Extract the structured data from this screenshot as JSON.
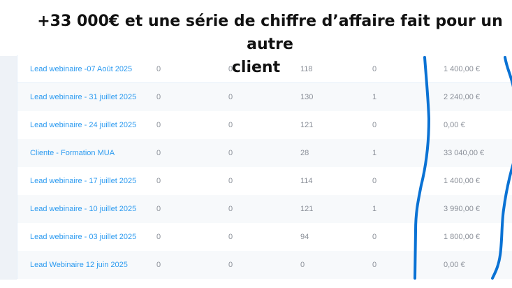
{
  "caption": {
    "line1": "+33 000€ et une série de chiffre d’affaire fait pour un autre",
    "line2": "client"
  },
  "table": {
    "rows": [
      {
        "name": "Lead webinaire -07 Août 2025",
        "c1": "0",
        "c2": "0",
        "c3": "118",
        "c4": "0",
        "revenue": "1 400,00 €"
      },
      {
        "name": "Lead webinaire - 31 juillet 2025",
        "c1": "0",
        "c2": "0",
        "c3": "130",
        "c4": "1",
        "revenue": "2 240,00 €"
      },
      {
        "name": "Lead webinaire - 24 juillet 2025",
        "c1": "0",
        "c2": "0",
        "c3": "121",
        "c4": "0",
        "revenue": "0,00 €"
      },
      {
        "name": "Cliente - Formation MUA",
        "c1": "0",
        "c2": "0",
        "c3": "28",
        "c4": "1",
        "revenue": "33 040,00 €"
      },
      {
        "name": "Lead webinaire - 17 juillet 2025",
        "c1": "0",
        "c2": "0",
        "c3": "114",
        "c4": "0",
        "revenue": "1 400,00 €"
      },
      {
        "name": "Lead webinaire - 10 juillet 2025",
        "c1": "0",
        "c2": "0",
        "c3": "121",
        "c4": "1",
        "revenue": "3 990,00 €"
      },
      {
        "name": "Lead webinaire - 03 juillet 2025",
        "c1": "0",
        "c2": "0",
        "c3": "94",
        "c4": "0",
        "revenue": "1 800,00 €"
      },
      {
        "name": "Lead Webinaire 12 juin 2025",
        "c1": "0",
        "c2": "0",
        "c3": "0",
        "c4": "0",
        "revenue": "0,00 €"
      }
    ]
  },
  "colors": {
    "link": "#2d9bf0",
    "annotation": "#0a72d4"
  }
}
